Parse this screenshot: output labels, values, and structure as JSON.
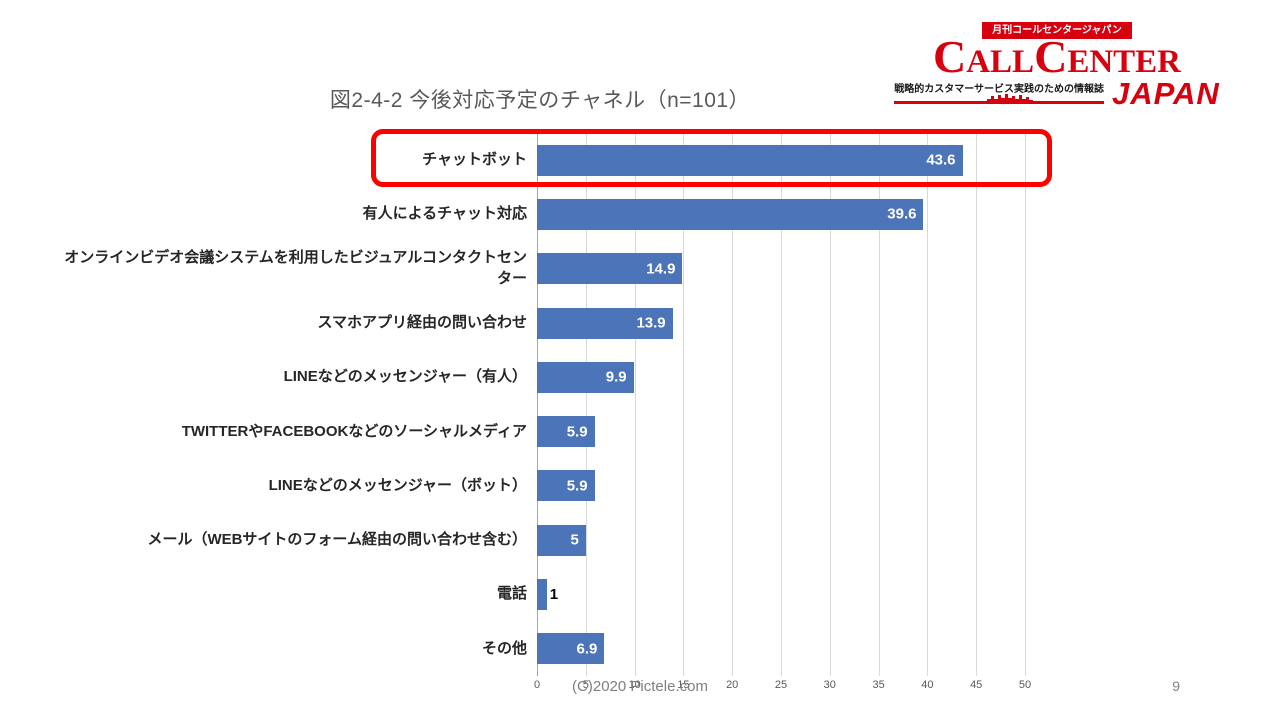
{
  "page": {
    "title": "図2-4-2 今後対応予定のチャネル（n=101）",
    "footer": "(C)2020 Pictele.com",
    "page_number": "9"
  },
  "logo": {
    "banner": "月刊コールセンタージャパン",
    "brand_parts": [
      "C",
      "ALL",
      "C",
      "ENTER"
    ],
    "tagline": "戦略的カスタマーサービス実践のための情報誌",
    "japan": "JAPAN",
    "brand_color": "#D7000F"
  },
  "chart_data": {
    "type": "bar",
    "orientation": "horizontal",
    "title": "図2-4-2 今後対応予定のチャネル（n=101）",
    "sample_size": "n=101",
    "categories": [
      "チャットボット",
      "有人によるチャット対応",
      "オンラインビデオ会議システムを利用したビジュアルコンタクトセンター",
      "スマホアプリ経由の問い合わせ",
      "LINEなどのメッセンジャー（有人）",
      "TWITTERやFACEBOOKなどのソーシャルメディア",
      "LINEなどのメッセンジャー（ボット）",
      "メール（WEBサイトのフォーム経由の問い合わせ含む）",
      "電話",
      "その他"
    ],
    "values": [
      43.6,
      39.6,
      14.9,
      13.9,
      9.9,
      5.9,
      5.9,
      5,
      1,
      6.9
    ],
    "x_ticks": [
      0,
      5,
      10,
      15,
      20,
      25,
      30,
      35,
      40,
      45,
      50
    ],
    "xlim": [
      0,
      50
    ],
    "grid": true,
    "legend": false,
    "bar_color": "#4C74B8",
    "gridline_color": "#D9D9D9",
    "value_label_inside_color": "#FFFFFF",
    "value_label_outside_color": "#000000",
    "highlight_index": 0,
    "highlighted_category": "チャットボット",
    "highlight_color": "#FF0000"
  }
}
